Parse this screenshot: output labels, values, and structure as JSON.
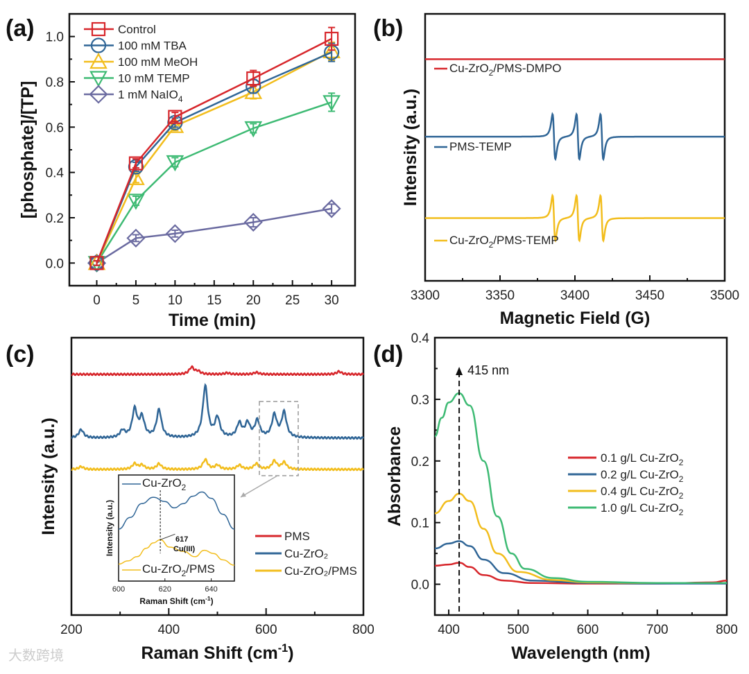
{
  "watermark": "大数跨境",
  "chart_data": [
    {
      "panel": "(a)",
      "type": "line",
      "xlabel": "Time (min)",
      "ylabel": "[phosphate]/[TP]",
      "xlim": [
        -3.5,
        33
      ],
      "ylim": [
        -0.1,
        1.1
      ],
      "xticks": [
        0,
        5,
        10,
        15,
        20,
        25,
        30
      ],
      "yticks": [
        0.0,
        0.2,
        0.4,
        0.6,
        0.8,
        1.0
      ],
      "legend_position": "top-left",
      "x": [
        0,
        5,
        10,
        20,
        30
      ],
      "series": [
        {
          "name": "Control",
          "color": "#d7262b",
          "marker": "square",
          "values": [
            0,
            0.44,
            0.645,
            0.815,
            0.99
          ],
          "errors": [
            0.01,
            0.02,
            0.02,
            0.035,
            0.05
          ]
        },
        {
          "name": "100 mM TBA",
          "color": "#2f6596",
          "marker": "circle",
          "values": [
            0,
            0.425,
            0.62,
            0.78,
            0.93
          ],
          "errors": [
            0.01,
            0.02,
            0.02,
            0.03,
            0.04
          ]
        },
        {
          "name": "100 mM MeOH",
          "color": "#f2bd1c",
          "marker": "triangle-up",
          "values": [
            0,
            0.375,
            0.605,
            0.755,
            0.935
          ],
          "errors": [
            0.01,
            0.02,
            0.02,
            0.03,
            0.04
          ]
        },
        {
          "name": "10 mM TEMP",
          "color": "#3dba73",
          "marker": "triangle-down",
          "values": [
            0,
            0.275,
            0.445,
            0.595,
            0.71
          ],
          "errors": [
            0.01,
            0.02,
            0.02,
            0.02,
            0.04
          ]
        },
        {
          "name": "1 mM NaIO",
          "subscript": "4",
          "color": "#6a6aa0",
          "marker": "diamond",
          "values": [
            0,
            0.11,
            0.13,
            0.18,
            0.24
          ],
          "errors": [
            0.01,
            0.015,
            0.015,
            0.02,
            0.02
          ]
        }
      ]
    },
    {
      "panel": "(b)",
      "type": "line",
      "xlabel": "Magnetic Field (G)",
      "ylabel": "Intensity (a.u.)",
      "xlim": [
        3300,
        3500
      ],
      "ylim": [
        0,
        100
      ],
      "xticks": [
        3300,
        3350,
        3400,
        3450,
        3500
      ],
      "series": [
        {
          "name": "Cu-ZrO",
          "sub": "2",
          "suffix": "/PMS-DMPO",
          "color": "#d7262b",
          "offset": 83,
          "peaks": []
        },
        {
          "name": "PMS-TEMP",
          "sub": "",
          "suffix": "",
          "color": "#2f6596",
          "offset": 54,
          "peaks": [
            3386,
            3402,
            3418
          ],
          "amplitude": 10
        },
        {
          "name": "Cu-ZrO",
          "sub": "2",
          "suffix": "/PMS-TEMP",
          "color": "#f2bd1c",
          "offset": 23.5,
          "peaks": [
            3386,
            3402,
            3418
          ],
          "amplitude": 10
        }
      ]
    },
    {
      "panel": "(c)",
      "type": "line",
      "xlabel": "Raman Shift (cm",
      "xlabel_sup": "-1",
      "xlabel_end": ")",
      "ylabel": "Intensity (a.u.)",
      "xlim": [
        200,
        800
      ],
      "ylim": [
        0,
        100
      ],
      "xticks": [
        200,
        400,
        600,
        800
      ],
      "legend_position": "bottom-right",
      "series": [
        {
          "name": "PMS",
          "color": "#d7262b",
          "offset": 86.8,
          "peaks": [
            [
              447,
              2.5
            ],
            [
              460,
              1
            ],
            [
              520,
              0.5
            ],
            [
              580,
              0.7
            ],
            [
              750,
              1
            ]
          ]
        },
        {
          "name": "Cu-ZrO₂",
          "color": "#2f6596",
          "offset": 63.8,
          "peaks": [
            [
              220,
              3
            ],
            [
              305,
              2.5
            ],
            [
              330,
              10
            ],
            [
              345,
              7
            ],
            [
              380,
              10
            ],
            [
              475,
              18.5
            ],
            [
              500,
              7
            ],
            [
              545,
              5
            ],
            [
              562,
              5
            ],
            [
              582,
              6
            ],
            [
              617,
              8
            ],
            [
              637,
              9
            ]
          ]
        },
        {
          "name": "Cu-ZrO₂/PMS",
          "color": "#f2bd1c",
          "offset": 52.5,
          "peaks": [
            [
              220,
              1
            ],
            [
              330,
              2
            ],
            [
              345,
              1.5
            ],
            [
              380,
              2
            ],
            [
              475,
              3.5
            ],
            [
              500,
              1.5
            ],
            [
              545,
              1.5
            ],
            [
              580,
              2
            ],
            [
              617,
              3
            ],
            [
              637,
              2.5
            ]
          ]
        }
      ],
      "inset": {
        "xlabel": "Raman Shift (cm",
        "xlabel_sup": "-1",
        "xlabel_end": ")",
        "ylabel": "Intensity (a.u.)",
        "xlim": [
          600,
          650
        ],
        "xticks": [
          600,
          620,
          640
        ],
        "annotation_value": "617",
        "annotation_label": "Cu(III)",
        "series": [
          {
            "name": "Cu-ZrO",
            "sub": "2",
            "suffix": "",
            "color": "#2f6596",
            "x": [
              600,
              605,
              610,
              615,
              620,
              624,
              628,
              632,
              636,
              640,
              645,
              650
            ],
            "y": [
              0.49,
              0.6,
              0.73,
              0.79,
              0.75,
              0.69,
              0.73,
              0.8,
              0.84,
              0.78,
              0.63,
              0.49
            ]
          },
          {
            "name": "Cu-ZrO",
            "sub": "2",
            "suffix": "/PMS",
            "color": "#f2bd1c",
            "x": [
              600,
              604,
              608,
              612,
              615,
              618,
              622,
              628,
              633,
              637,
              641,
              645,
              650
            ],
            "y": [
              0.16,
              0.19,
              0.23,
              0.31,
              0.36,
              0.39,
              0.32,
              0.28,
              0.23,
              0.29,
              0.26,
              0.2,
              0.15
            ]
          }
        ]
      }
    },
    {
      "panel": "(d)",
      "type": "line",
      "xlabel": "Wavelength (nm)",
      "ylabel": "Absorbance",
      "xlim": [
        380,
        800
      ],
      "ylim": [
        -0.05,
        0.4
      ],
      "xticks": [
        400,
        500,
        600,
        700,
        800
      ],
      "yticks": [
        0.0,
        0.1,
        0.2,
        0.3,
        0.4
      ],
      "annotation": "415 nm",
      "annotation_x": 415,
      "legend_position": "right",
      "series": [
        {
          "name": "0.1 g/L Cu-ZrO",
          "sub": "2",
          "color": "#d7262b",
          "x": [
            380,
            400,
            415,
            430,
            450,
            480,
            520,
            600,
            700,
            780,
            800
          ],
          "y": [
            0.03,
            0.032,
            0.035,
            0.028,
            0.015,
            0.006,
            0.002,
            0.001,
            0.001,
            0.003,
            0.006
          ]
        },
        {
          "name": "0.2 g/L Cu-ZrO",
          "sub": "2",
          "color": "#2f6596",
          "x": [
            380,
            400,
            415,
            430,
            450,
            480,
            520,
            600,
            700,
            800
          ],
          "y": [
            0.058,
            0.066,
            0.07,
            0.062,
            0.04,
            0.018,
            0.006,
            0.002,
            0.001,
            0.001
          ]
        },
        {
          "name": "0.4 g/L Cu-ZrO",
          "sub": "2",
          "color": "#f2bd1c",
          "x": [
            380,
            400,
            415,
            430,
            450,
            470,
            500,
            550,
            600,
            700,
            800
          ],
          "y": [
            0.115,
            0.135,
            0.147,
            0.135,
            0.09,
            0.05,
            0.02,
            0.007,
            0.003,
            0.002,
            0.002
          ]
        },
        {
          "name": "1.0 g/L Cu-ZrO",
          "sub": "2",
          "color": "#3dba73",
          "x": [
            380,
            390,
            400,
            415,
            430,
            450,
            470,
            490,
            510,
            550,
            600,
            700,
            800
          ],
          "y": [
            0.24,
            0.27,
            0.295,
            0.31,
            0.29,
            0.2,
            0.11,
            0.05,
            0.025,
            0.01,
            0.004,
            0.002,
            0.002
          ]
        }
      ]
    }
  ]
}
